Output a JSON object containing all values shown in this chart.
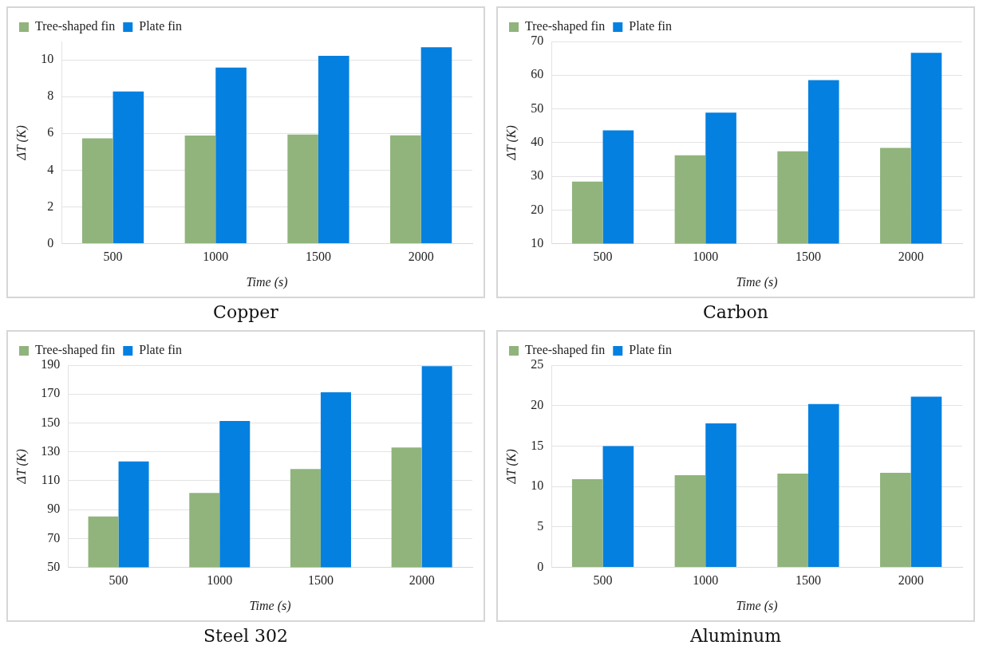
{
  "chart_data": [
    {
      "type": "bar",
      "title": "Copper",
      "xlabel": "Time (s)",
      "ylabel": "ΔT (K)",
      "categories": [
        "500",
        "1000",
        "1500",
        "2000"
      ],
      "series": [
        {
          "name": "Tree-shaped fin",
          "color": "#90b47c",
          "values": [
            5.73,
            5.88,
            5.94,
            5.89
          ]
        },
        {
          "name": "Plate fin",
          "color": "#0380e0",
          "values": [
            8.28,
            9.58,
            10.22,
            10.69
          ]
        }
      ],
      "ylim": [
        0,
        11
      ],
      "yticks": [
        0,
        2,
        4,
        6,
        8,
        10
      ],
      "grid": "y",
      "legend": "top left"
    },
    {
      "type": "bar",
      "title": "Carbon",
      "xlabel": "Time (s)",
      "ylabel": "ΔT (K)",
      "categories": [
        "500",
        "1000",
        "1500",
        "2000"
      ],
      "series": [
        {
          "name": "Tree-shaped fin",
          "color": "#90b47c",
          "values": [
            28.4,
            36.2,
            37.4,
            38.4
          ]
        },
        {
          "name": "Plate fin",
          "color": "#0380e0",
          "values": [
            43.6,
            48.9,
            58.5,
            66.6
          ]
        }
      ],
      "ylim": [
        10,
        70
      ],
      "yticks": [
        10,
        20,
        30,
        40,
        50,
        60,
        70
      ],
      "grid": "y",
      "legend": "top left"
    },
    {
      "type": "bar",
      "title": "Steel 302",
      "xlabel": "Time (s)",
      "ylabel": "ΔT (K)",
      "categories": [
        "500",
        "1000",
        "1500",
        "2000"
      ],
      "series": [
        {
          "name": "Tree-shaped fin",
          "color": "#90b47c",
          "values": [
            85.3,
            101.5,
            118.1,
            133.0
          ]
        },
        {
          "name": "Plate fin",
          "color": "#0380e0",
          "values": [
            123.3,
            151.3,
            171.2,
            189.3
          ]
        }
      ],
      "ylim": [
        50,
        190
      ],
      "yticks": [
        50,
        70,
        90,
        110,
        130,
        150,
        170,
        190
      ],
      "grid": "y",
      "legend": "top left"
    },
    {
      "type": "bar",
      "title": "Aluminum",
      "xlabel": "Time (s)",
      "ylabel": "ΔT (K)",
      "categories": [
        "500",
        "1000",
        "1500",
        "2000"
      ],
      "series": [
        {
          "name": "Tree-shaped fin",
          "color": "#90b47c",
          "values": [
            10.9,
            11.4,
            11.6,
            11.7
          ]
        },
        {
          "name": "Plate fin",
          "color": "#0380e0",
          "values": [
            15.0,
            17.8,
            20.2,
            21.1
          ]
        }
      ],
      "ylim": [
        0,
        25
      ],
      "yticks": [
        0,
        5,
        10,
        15,
        20,
        25
      ],
      "grid": "y",
      "legend": "top left"
    }
  ]
}
